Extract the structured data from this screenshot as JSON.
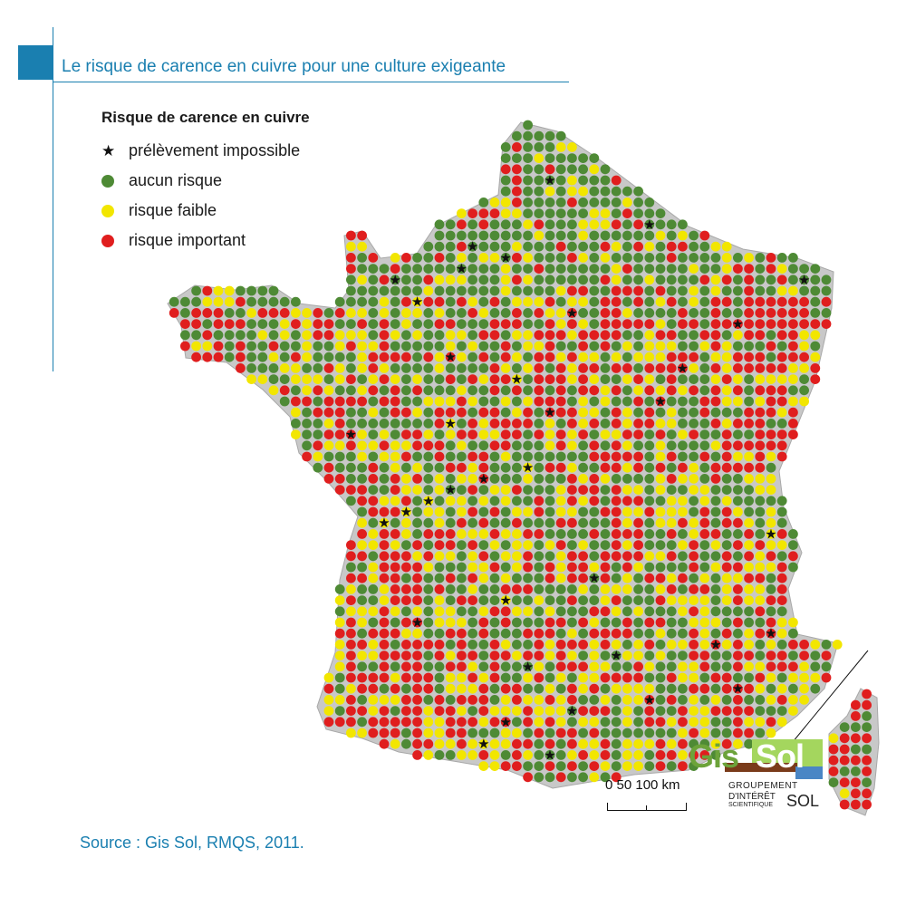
{
  "header": {
    "title": "Le risque de carence en cuivre pour une culture exigeante",
    "accent_color": "#1a7fb0"
  },
  "legend": {
    "title": "Risque de carence en cuivre",
    "items": [
      {
        "label": "prélèvement impossible",
        "symbol": "star",
        "color": "#111111"
      },
      {
        "label": "aucun risque",
        "symbol": "dot",
        "color": "#4e8a35"
      },
      {
        "label": "risque faible",
        "symbol": "dot",
        "color": "#f2e600"
      },
      {
        "label": "risque important",
        "symbol": "dot",
        "color": "#e01e1e"
      }
    ]
  },
  "map": {
    "land_color": "#c8c8c8",
    "categories": [
      "aucun risque",
      "risque faible",
      "risque important",
      "prélèvement impossible"
    ],
    "icon": "grid-dot-map"
  },
  "scale": {
    "labels": "0   50   100 km",
    "unit": "km",
    "ticks": [
      0,
      50,
      100
    ]
  },
  "logo": {
    "gis": "Gis",
    "sol": "Sol",
    "line1": "GROUPEMENT",
    "line2": "D'INTÉRÊT",
    "line3": "SCIENTIFIQUE",
    "line4": "SOL"
  },
  "source": "Source : Gis Sol, RMQS, 2011."
}
